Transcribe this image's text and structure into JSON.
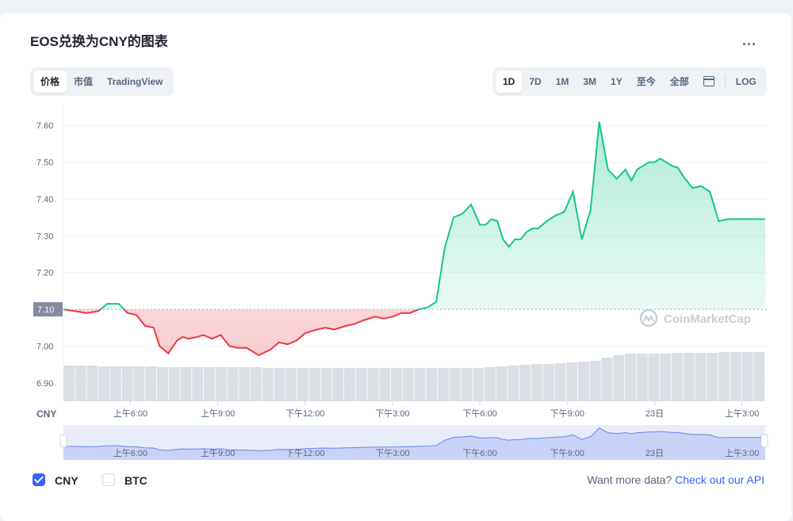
{
  "header": {
    "title": "EOS兑换为CNY的图表",
    "menu_label": "..."
  },
  "view_tabs": [
    "价格",
    "市值",
    "TradingView"
  ],
  "active_view": 0,
  "range_tabs": [
    "1D",
    "7D",
    "1M",
    "3M",
    "1Y",
    "至今",
    "全部"
  ],
  "active_range": 0,
  "calendar_icon": "calendar-icon",
  "log_label": "LOG",
  "watermark": "CoinMarketCap",
  "currency_label": "CNY",
  "footer": {
    "checkboxes": [
      {
        "label": "CNY",
        "checked": true
      },
      {
        "label": "BTC",
        "checked": false
      }
    ],
    "more_data": "Want more data?",
    "api_link": "Check out our API"
  },
  "colors": {
    "up": "#16c784",
    "down": "#ea3943",
    "accent": "#3861fb",
    "volume": "#dadee5",
    "baseline": "#a6b0c3"
  },
  "chart_data": {
    "type": "line",
    "title": "EOS兑换为CNY的图表",
    "xlabel": "",
    "ylabel": "",
    "y_ticks": [
      6.9,
      7.0,
      7.2,
      7.3,
      7.4,
      7.5,
      7.6
    ],
    "y_tick_labels": [
      "6.90",
      "7.00",
      "7.20",
      "7.30",
      "7.40",
      "7.50",
      "7.60"
    ],
    "ylim": [
      6.85,
      7.65
    ],
    "baseline": 7.1,
    "baseline_label": "7.10",
    "xlim": [
      3.7,
      27.8
    ],
    "x_ticks": [
      6,
      9,
      12,
      15,
      18,
      21,
      24,
      27
    ],
    "x_tick_labels": [
      "上午6:00",
      "上午9:00",
      "下午12:00",
      "下午3:00",
      "下午6:00",
      "下午9:00",
      "23日",
      "上午3:00"
    ],
    "series": [
      {
        "x": [
          3.7,
          4.1,
          4.5,
          4.9,
          5.2,
          5.6,
          5.9,
          6.2,
          6.5,
          6.8,
          7.0,
          7.3,
          7.6,
          7.8,
          8.0,
          8.3,
          8.5,
          8.8,
          9.1,
          9.4,
          9.7,
          10.0,
          10.4,
          10.8,
          11.1,
          11.4,
          11.7,
          12.0,
          12.4,
          12.7,
          13.0,
          13.4,
          13.7,
          14.0,
          14.4,
          14.7,
          15.0,
          15.3,
          15.6,
          15.9,
          16.2,
          16.5,
          16.8,
          17.1,
          17.4,
          17.7,
          18.0,
          18.2,
          18.4,
          18.6,
          18.8,
          19.0,
          19.2,
          19.4,
          19.6,
          19.8,
          20.0,
          20.3,
          20.6,
          20.9,
          21.2,
          21.5,
          21.8,
          22.1,
          22.4,
          22.7,
          23.0,
          23.2,
          23.4,
          23.6,
          23.8,
          24.0,
          24.1,
          24.2,
          24.4,
          24.6,
          24.8,
          25.0,
          25.3,
          25.6,
          25.9,
          26.2,
          26.5,
          26.8,
          27.1,
          27.4,
          27.6,
          27.8
        ],
        "values": [
          7.1,
          7.095,
          7.09,
          7.095,
          7.115,
          7.115,
          7.09,
          7.085,
          7.055,
          7.05,
          7.0,
          6.98,
          7.015,
          7.025,
          7.02,
          7.025,
          7.03,
          7.02,
          7.03,
          7.0,
          6.995,
          6.995,
          6.975,
          6.99,
          7.01,
          7.005,
          7.015,
          7.035,
          7.045,
          7.05,
          7.045,
          7.055,
          7.06,
          7.07,
          7.08,
          7.075,
          7.08,
          7.09,
          7.09,
          7.1,
          7.105,
          7.12,
          7.27,
          7.35,
          7.36,
          7.385,
          7.33,
          7.33,
          7.345,
          7.34,
          7.29,
          7.27,
          7.29,
          7.29,
          7.31,
          7.32,
          7.32,
          7.34,
          7.355,
          7.365,
          7.42,
          7.29,
          7.37,
          7.61,
          7.48,
          7.455,
          7.48,
          7.45,
          7.48,
          7.49,
          7.5,
          7.5,
          7.505,
          7.51,
          7.5,
          7.49,
          7.485,
          7.46,
          7.43,
          7.435,
          7.42,
          7.34,
          7.345,
          7.345,
          7.345,
          7.345,
          7.345,
          7.345
        ]
      }
    ],
    "volume_heights": [
      0.45,
      0.45,
      0.45,
      0.44,
      0.44,
      0.44,
      0.44,
      0.44,
      0.43,
      0.43,
      0.43,
      0.43,
      0.43,
      0.43,
      0.43,
      0.43,
      0.43,
      0.42,
      0.42,
      0.42,
      0.42,
      0.42,
      0.42,
      0.42,
      0.42,
      0.42,
      0.42,
      0.42,
      0.42,
      0.42,
      0.42,
      0.42,
      0.42,
      0.42,
      0.42,
      0.42,
      0.43,
      0.44,
      0.45,
      0.46,
      0.47,
      0.47,
      0.48,
      0.49,
      0.5,
      0.51,
      0.55,
      0.58,
      0.6,
      0.6,
      0.6,
      0.6,
      0.61,
      0.61,
      0.61,
      0.61,
      0.62,
      0.62,
      0.62,
      0.62
    ],
    "navigator_labels": [
      "上午6:00",
      "上午9:00",
      "下午12:00",
      "下午3:00",
      "下午6:00",
      "下午9:00",
      "23日",
      "上午3:00"
    ]
  }
}
